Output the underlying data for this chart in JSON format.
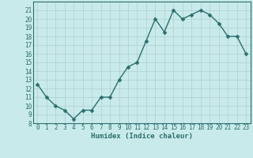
{
  "x": [
    0,
    1,
    2,
    3,
    4,
    5,
    6,
    7,
    8,
    9,
    10,
    11,
    12,
    13,
    14,
    15,
    16,
    17,
    18,
    19,
    20,
    21,
    22,
    23
  ],
  "y": [
    12.5,
    11.0,
    10.0,
    9.5,
    8.5,
    9.5,
    9.5,
    11.0,
    11.0,
    13.0,
    14.5,
    15.0,
    17.5,
    20.0,
    18.5,
    21.0,
    20.0,
    20.5,
    21.0,
    20.5,
    19.5,
    18.0,
    18.0,
    16.0
  ],
  "title": "",
  "xlabel": "Humidex (Indice chaleur)",
  "ylabel": "",
  "xlim": [
    -0.5,
    23.5
  ],
  "ylim": [
    8,
    22
  ],
  "yticks": [
    8,
    9,
    10,
    11,
    12,
    13,
    14,
    15,
    16,
    17,
    18,
    19,
    20,
    21
  ],
  "xticks": [
    0,
    1,
    2,
    3,
    4,
    5,
    6,
    7,
    8,
    9,
    10,
    11,
    12,
    13,
    14,
    15,
    16,
    17,
    18,
    19,
    20,
    21,
    22,
    23
  ],
  "line_color": "#2d6e6e",
  "marker_color": "#2d6e6e",
  "bg_color": "#c8eaea",
  "grid_color": "#b0d0d0",
  "axis_color": "#2d6e6e",
  "label_color": "#2d6e6e",
  "tick_label_size": 5.5,
  "xlabel_size": 6.5,
  "line_width": 1.0,
  "marker_size": 2.5
}
